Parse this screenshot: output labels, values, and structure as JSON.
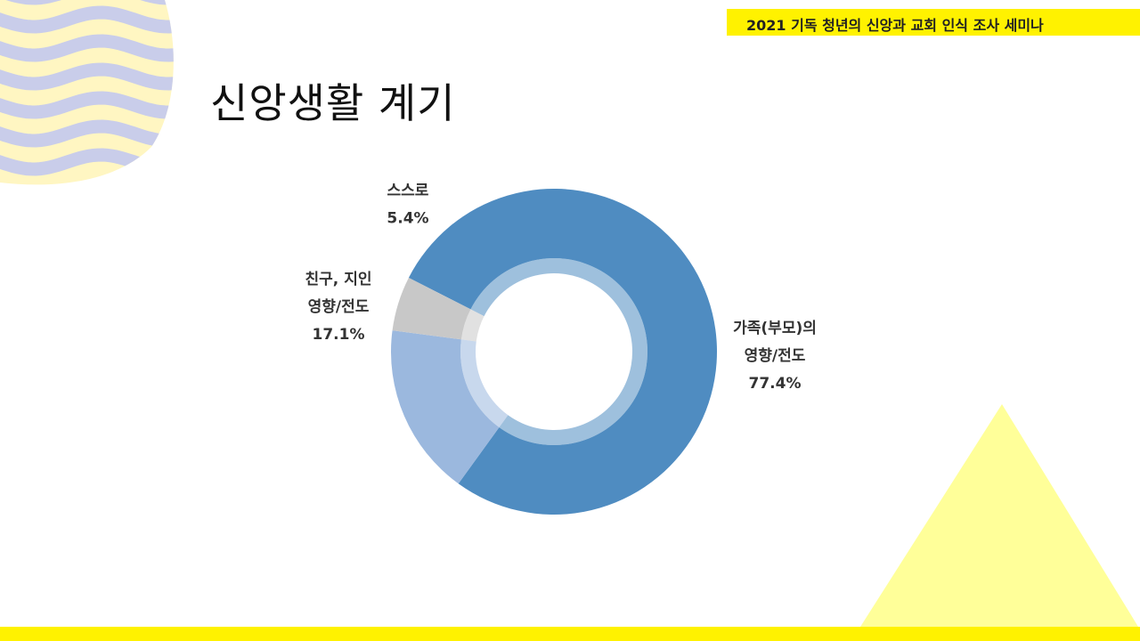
{
  "header": {
    "banner_text": "2021 기독 청년의 신앙과 교회 인식 조사 세미나"
  },
  "slide": {
    "title": "신앙생활 계기"
  },
  "colors": {
    "accent_yellow": "#fff200",
    "triangle_yellow": "#ffff99",
    "wave_lavender": "#c9cdea",
    "wave_cream": "#fff6c2"
  },
  "chart_data": {
    "type": "pie",
    "variant": "donut",
    "slices": [
      {
        "label_lines": [
          "가족(부모)의",
          "영향/전도"
        ],
        "value": 77.4,
        "display": "77.4%",
        "color": "#4f8cc1"
      },
      {
        "label_lines": [
          "친구, 지인",
          "영향/전도"
        ],
        "value": 17.1,
        "display": "17.1%",
        "color": "#9bb8de"
      },
      {
        "label_lines": [
          "스스로"
        ],
        "value": 5.4,
        "display": "5.4%",
        "color": "#c8c8c8"
      }
    ]
  }
}
